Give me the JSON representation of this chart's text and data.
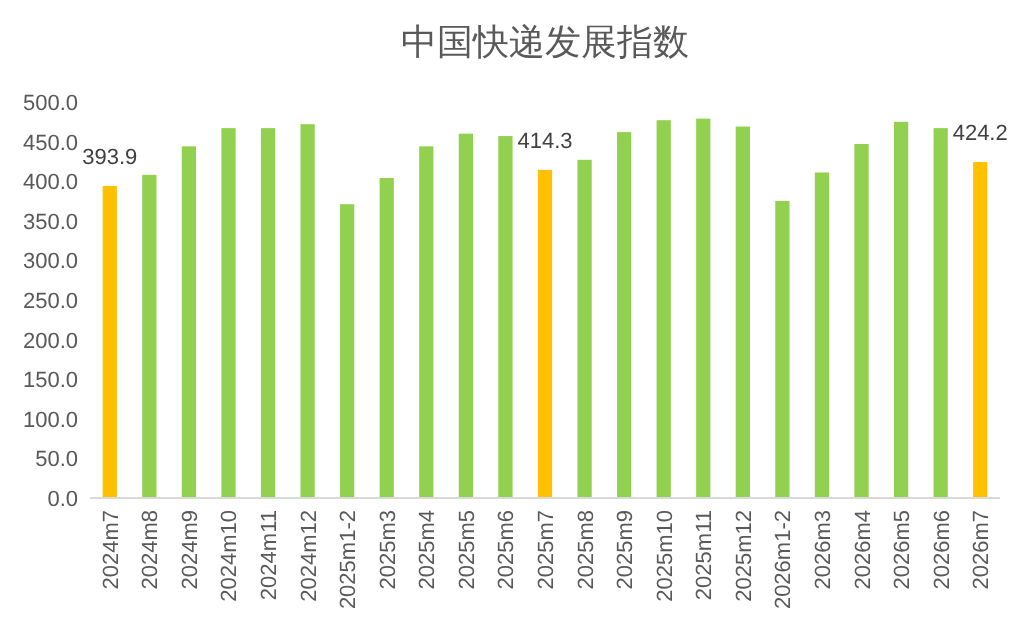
{
  "chart_data": {
    "type": "bar",
    "title": "中国快递发展指数",
    "categories": [
      "2024m7",
      "2024m8",
      "2024m9",
      "2024m10",
      "2024m11",
      "2024m12",
      "2025m1-2",
      "2025m3",
      "2025m4",
      "2025m5",
      "2025m6",
      "2025m7",
      "2025m8",
      "2025m9",
      "2025m10",
      "2025m11",
      "2025m12",
      "2026m1-2",
      "2026m3",
      "2026m4",
      "2026m5",
      "2026m6",
      "2026m7"
    ],
    "values": [
      393.9,
      408,
      444,
      467,
      467,
      472,
      371,
      404,
      444,
      460,
      457,
      414.3,
      427,
      462,
      477,
      479,
      469,
      375,
      411,
      447,
      475,
      467,
      424.2
    ],
    "colors": [
      "#ffc000",
      "#92d050",
      "#92d050",
      "#92d050",
      "#92d050",
      "#92d050",
      "#92d050",
      "#92d050",
      "#92d050",
      "#92d050",
      "#92d050",
      "#ffc000",
      "#92d050",
      "#92d050",
      "#92d050",
      "#92d050",
      "#92d050",
      "#92d050",
      "#92d050",
      "#92d050",
      "#92d050",
      "#92d050",
      "#ffc000"
    ],
    "value_labels": [
      "393.9",
      null,
      null,
      null,
      null,
      null,
      null,
      null,
      null,
      null,
      null,
      "414.3",
      null,
      null,
      null,
      null,
      null,
      null,
      null,
      null,
      null,
      null,
      "424.2"
    ],
    "ylim": [
      0,
      500
    ],
    "yticks": [
      {
        "value": 0,
        "label": "0.0"
      },
      {
        "value": 50,
        "label": "50.0"
      },
      {
        "value": 100,
        "label": "100.0"
      },
      {
        "value": 150,
        "label": "150.0"
      },
      {
        "value": 200,
        "label": "200.0"
      },
      {
        "value": 250,
        "label": "250.0"
      },
      {
        "value": 300,
        "label": "300.0"
      },
      {
        "value": 350,
        "label": "350.0"
      },
      {
        "value": 400,
        "label": "400.0"
      },
      {
        "value": 450,
        "label": "450.0"
      },
      {
        "value": 500,
        "label": "500.0"
      }
    ],
    "grid": false
  }
}
